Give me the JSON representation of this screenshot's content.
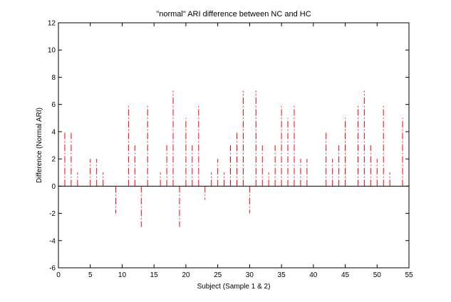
{
  "chart_data": {
    "type": "bar",
    "title": "\"normal\" ARI difference between NC and HC",
    "xlabel": "Subject (Sample 1 & 2)",
    "ylabel": "Difference (Normal ARI)",
    "xlim": [
      0,
      55
    ],
    "ylim": [
      -6,
      12
    ],
    "xticks": [
      0,
      5,
      10,
      15,
      20,
      25,
      30,
      35,
      40,
      45,
      50,
      55
    ],
    "yticks": [
      -6,
      -4,
      -2,
      0,
      2,
      4,
      6,
      8,
      10,
      12
    ],
    "grid": false,
    "legend": "none",
    "style": "stem lines (dash-dot)",
    "series": [
      {
        "color": "#ff0000",
        "x": [
          1,
          2,
          3,
          5,
          6,
          7,
          9,
          11,
          12,
          13,
          14,
          16,
          17,
          18,
          19,
          20,
          21,
          22,
          23,
          24,
          25,
          26,
          27,
          28,
          29,
          30,
          31,
          32,
          33,
          34,
          35,
          36,
          37,
          38,
          39,
          42,
          43,
          44,
          45,
          47,
          48,
          49,
          50,
          51,
          52,
          54
        ],
        "values": [
          4,
          4,
          1,
          2,
          2,
          1,
          -2,
          6,
          3,
          -3,
          6,
          1,
          3,
          7,
          -3,
          5,
          3,
          6,
          -1,
          1,
          2,
          1,
          3,
          4,
          7,
          -2,
          7,
          3,
          1,
          3,
          6,
          5,
          6,
          2,
          2,
          4,
          2,
          3,
          5,
          6,
          7,
          3,
          2,
          6,
          1,
          5
        ]
      }
    ]
  }
}
